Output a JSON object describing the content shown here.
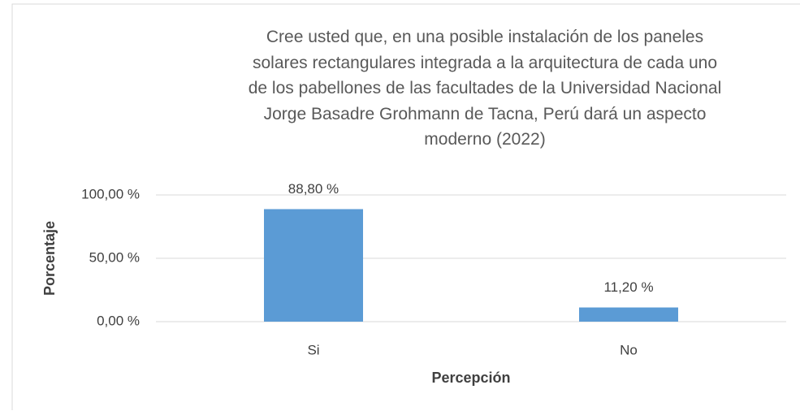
{
  "chart_data": {
    "type": "bar",
    "title": "Cree usted que, en una posible instalación de los paneles solares rectangulares integrada a la arquitectura de cada uno de los pabellones de las facultades de la  Universidad Nacional Jorge Basadre Grohmann de Tacna, Perú dará un aspecto moderno (2022)",
    "x_label": "Percepción",
    "y_label": "Porcentaje",
    "categories": [
      "Si",
      "No"
    ],
    "values": [
      88.8,
      11.2
    ],
    "value_labels": [
      "88,80 %",
      "11,20 %"
    ],
    "color": "#5b9bd5",
    "ylim": [
      0,
      100
    ],
    "yticks": [
      {
        "value": 0,
        "label": "0,00 %"
      },
      {
        "value": 50,
        "label": "50,00 %"
      },
      {
        "value": 100,
        "label": "100,00 %"
      }
    ],
    "grid": true
  }
}
